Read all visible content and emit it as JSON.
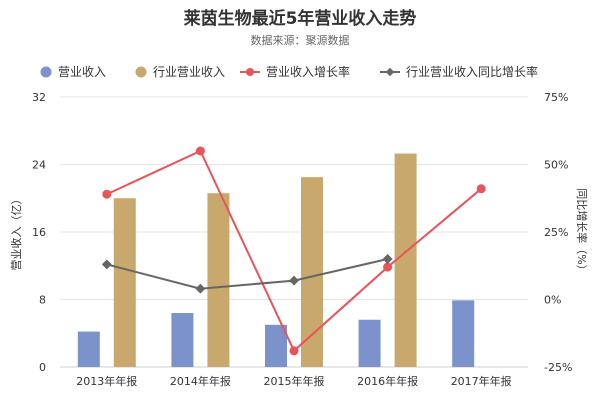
{
  "chart_data": {
    "type": "bar",
    "title": "莱茵生物最近5年营业收入走势",
    "subtitle": "数据来源：聚源数据",
    "categories": [
      "2013年年报",
      "2014年年报",
      "2015年年报",
      "2016年年报",
      "2017年年报"
    ],
    "series": [
      {
        "name": "营业收入",
        "type": "bar",
        "axis": "left",
        "color": "#7b92cb",
        "values": [
          4.2,
          6.4,
          5.0,
          5.6,
          7.9
        ]
      },
      {
        "name": "行业营业收入",
        "type": "bar",
        "axis": "left",
        "color": "#c9a86e",
        "values": [
          20.0,
          20.6,
          22.5,
          25.3,
          null
        ]
      },
      {
        "name": "营业收入增长率",
        "type": "line",
        "axis": "right",
        "color": "#e9545a",
        "values": [
          39,
          55,
          -19,
          12,
          41
        ]
      },
      {
        "name": "行业营业收入同比增长率",
        "type": "line",
        "axis": "right",
        "color": "#666666",
        "values": [
          13,
          4,
          7,
          15,
          null
        ]
      }
    ],
    "ylabel": "营业收入（亿）",
    "y2label": "同比增长率（%）",
    "ylim": [
      0,
      32
    ],
    "yticks": [
      "0",
      "8",
      "16",
      "24",
      "32"
    ],
    "y2lim": [
      -25,
      75
    ],
    "y2ticks": [
      "-25%",
      "0%",
      "25%",
      "50%",
      "75%"
    ],
    "grid": true,
    "legend": "top"
  }
}
